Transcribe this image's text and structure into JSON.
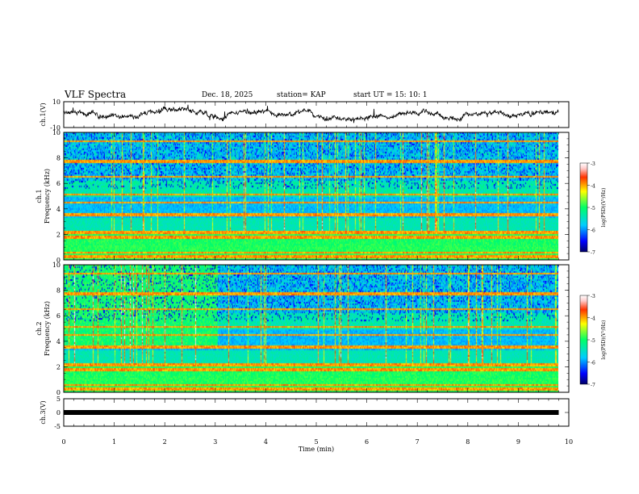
{
  "header": {
    "title": "VLF Spectra",
    "date": "Dec. 18, 2025",
    "station": "station= KAP",
    "start_ut": "start  UT =   15: 10: 1"
  },
  "chart_data": [
    {
      "type": "line",
      "panel": "ch1-waveform",
      "ylabel": "ch.1(V)",
      "ylim": [
        -10,
        10
      ],
      "y_ticks": [
        "10",
        "-10"
      ],
      "x_range_min": [
        0,
        10
      ]
    },
    {
      "type": "heatmap",
      "panel": "ch1-spectrogram",
      "ylabel": "ch.1\nFrequency (kHz)",
      "ylim": [
        0,
        10
      ],
      "y_ticks": [
        "0",
        "2",
        "4",
        "6",
        "8",
        "10"
      ],
      "x_range_min": [
        0,
        9.8
      ],
      "colorbar": {
        "label": "log(PSD)(V²/Hz)",
        "range": [
          -7,
          -3
        ],
        "ticks": [
          "-3",
          "-4",
          "-5",
          "-6",
          "-7"
        ]
      }
    },
    {
      "type": "heatmap",
      "panel": "ch2-spectrogram",
      "ylabel": "ch.2\nFrequency (kHz)",
      "ylim": [
        0,
        10
      ],
      "y_ticks": [
        "0",
        "2",
        "4",
        "6",
        "8",
        "10"
      ],
      "x_range_min": [
        0,
        9.8
      ],
      "regime_change_min": 3.05,
      "colorbar": {
        "label": "log(PSD)(V²/Hz)",
        "range": [
          -7,
          -3
        ],
        "ticks": [
          "-3",
          "-4",
          "-5",
          "-6",
          "-7"
        ]
      }
    },
    {
      "type": "line",
      "panel": "ch3-waveform",
      "ylabel": "ch.3(V)",
      "ylim": [
        -5,
        5
      ],
      "y_ticks": [
        "5",
        "0",
        "-5"
      ],
      "level": 0
    }
  ],
  "x_axis": {
    "label": "Time  (min)",
    "range": [
      0,
      10
    ],
    "ticks": [
      "0",
      "1",
      "2",
      "3",
      "4",
      "5",
      "6",
      "7",
      "8",
      "9",
      "10"
    ]
  }
}
